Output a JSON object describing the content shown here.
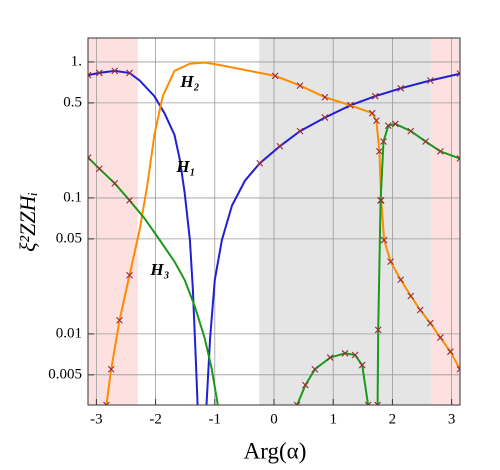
{
  "chart_data": {
    "type": "line",
    "xlabel": "Arg(α)",
    "ylabel": "ξ²ZZHᵢ",
    "log_y": true,
    "grid": true,
    "xlim": [
      -3.1416,
      3.1416
    ],
    "ylim": [
      0.003,
      1.5
    ],
    "xticks": [
      -3,
      -2,
      -1,
      0,
      1,
      2,
      3
    ],
    "yticks": [
      {
        "value": 1,
        "label": "1."
      },
      0.5,
      0.1,
      0.05,
      0.01,
      0.005
    ],
    "bands": [
      {
        "range": [
          -3.1416,
          -2.3
        ],
        "color": "#fde1e1"
      },
      {
        "range": [
          -0.25,
          2.65
        ],
        "color": "#e5e5e5"
      },
      {
        "range": [
          2.65,
          3.1416
        ],
        "color": "#fde1e1"
      }
    ],
    "marker": "x",
    "marker_color": "#9b2a3a",
    "series": [
      {
        "name": "H₁",
        "color": "#1f1fd6",
        "x": [
          -3.14,
          -2.95,
          -2.69,
          -2.44,
          -2.27,
          -2.02,
          -1.85,
          -1.68,
          -1.59,
          -1.51,
          -1.42,
          -1.37,
          -1.32,
          -1.29,
          -1.2,
          -1.14,
          -1.08,
          -1.0,
          -0.88,
          -0.71,
          -0.49,
          -0.24,
          0.1,
          0.44,
          0.86,
          1.29,
          1.71,
          2.14,
          2.64,
          3.14
        ],
        "values": [
          0.8,
          0.83,
          0.86,
          0.83,
          0.73,
          0.56,
          0.42,
          0.29,
          0.19,
          0.11,
          0.049,
          0.021,
          0.0065,
          0.003,
          null,
          0.003,
          0.0093,
          0.025,
          0.049,
          0.088,
          0.134,
          0.18,
          0.24,
          0.31,
          0.39,
          0.48,
          0.56,
          0.64,
          0.73,
          0.82
        ]
      },
      {
        "name": "H₂",
        "color": "#ff8c00",
        "x": [
          -2.83,
          -2.75,
          -2.61,
          -2.44,
          -2.27,
          -2.14,
          -2.02,
          -1.88,
          -1.68,
          -1.42,
          -1.17,
          -0.92,
          -0.41,
          0.02,
          0.44,
          0.86,
          1.29,
          1.66,
          1.73,
          1.78,
          1.81,
          1.86,
          1.97,
          2.14,
          2.31,
          2.47,
          2.64,
          2.81,
          2.98,
          3.14
        ],
        "values": [
          0.003,
          0.0055,
          0.0126,
          0.027,
          0.058,
          0.124,
          0.29,
          0.56,
          0.86,
          0.97,
          0.99,
          0.95,
          0.86,
          0.79,
          0.67,
          0.55,
          0.48,
          0.42,
          0.37,
          0.22,
          0.096,
          0.049,
          0.034,
          0.025,
          0.019,
          0.015,
          0.012,
          0.0094,
          0.0074,
          0.0055
        ]
      },
      {
        "name": "H₃",
        "color": "#1a9a1a",
        "x": [
          -3.14,
          -2.95,
          -2.69,
          -2.44,
          -2.19,
          -1.93,
          -1.68,
          -1.51,
          -1.34,
          -1.17,
          -1.05,
          -0.95,
          -0.5,
          0.39,
          0.53,
          0.69,
          0.95,
          1.2,
          1.37,
          1.49,
          1.59,
          1.7,
          1.75,
          1.76,
          1.8,
          1.85,
          1.93,
          2.05,
          2.31,
          2.56,
          2.81,
          3.14
        ],
        "values": [
          0.198,
          0.164,
          0.128,
          0.096,
          0.071,
          0.049,
          0.034,
          0.025,
          0.016,
          0.0093,
          0.0055,
          0.003,
          null,
          0.003,
          0.0042,
          0.0055,
          0.0067,
          0.0072,
          0.007,
          0.0059,
          0.003,
          null,
          0.003,
          0.0107,
          0.096,
          0.26,
          0.34,
          0.35,
          0.31,
          0.26,
          0.22,
          0.195
        ]
      }
    ]
  }
}
